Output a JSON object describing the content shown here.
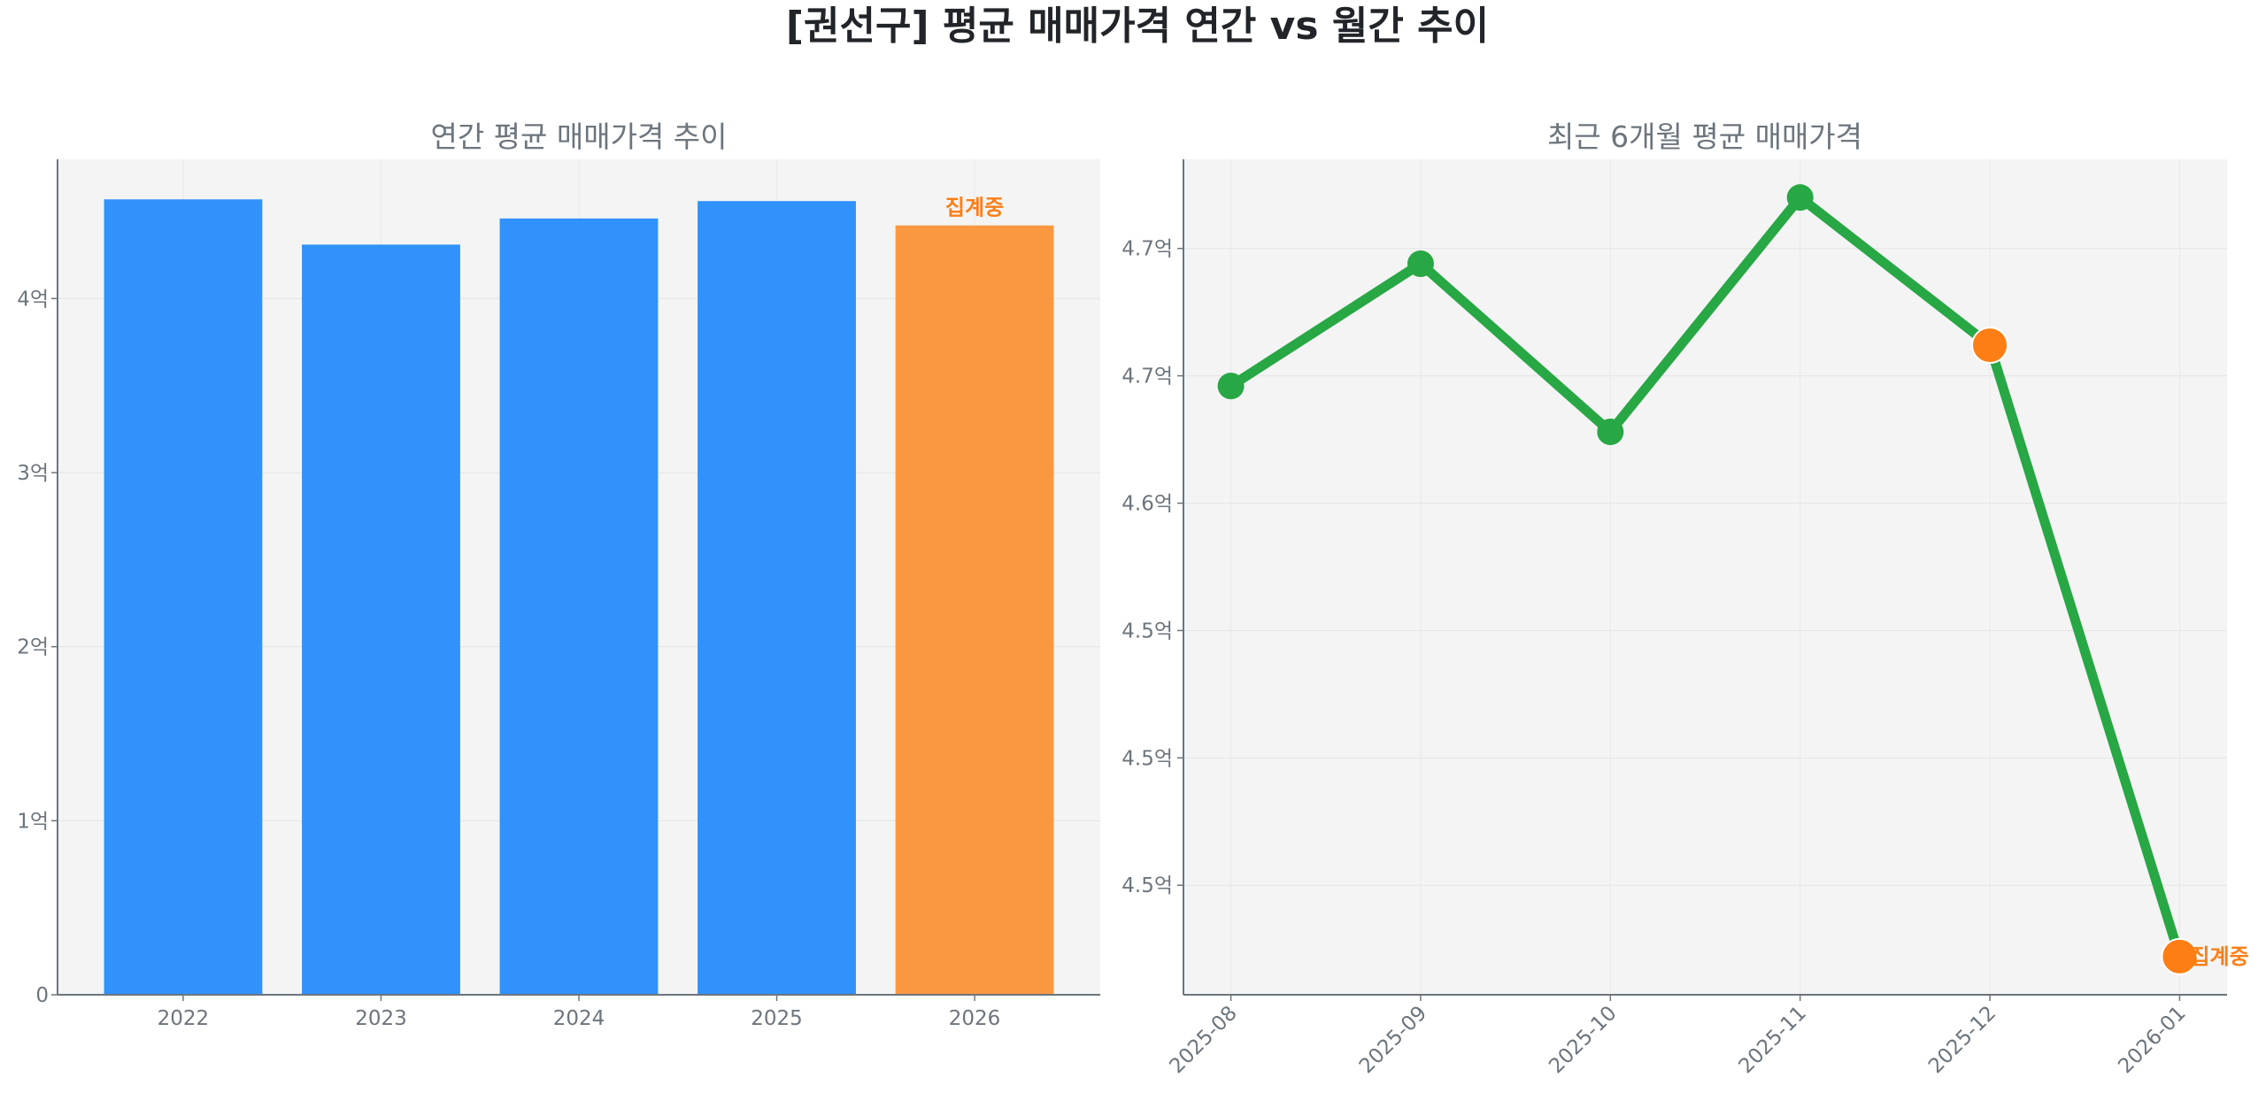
{
  "title": "[권선구] 평균 매매가격 연간 vs 월간 추이",
  "colors": {
    "bar": "#3192fb",
    "bar_in_progress": "#f99841",
    "line": "#28a745",
    "marker_highlight": "#fd7e14",
    "annotation": "#fd7e14",
    "axes_bg": "#f4f4f4"
  },
  "chart_data": [
    {
      "type": "bar",
      "title": "연간 평균 매매가격 추이",
      "categories": [
        "2022",
        "2023",
        "2024",
        "2025",
        "2026"
      ],
      "values": [
        4.57,
        4.31,
        4.46,
        4.56,
        4.42
      ],
      "unit": "억",
      "ylim": [
        0,
        4.8
      ],
      "yticks": [
        0,
        1,
        2,
        3,
        4
      ],
      "ytick_labels": [
        "0",
        "1억",
        "2억",
        "3억",
        "4억"
      ],
      "highlight_index": 4,
      "annotation": {
        "category": "2026",
        "text": "집계중"
      },
      "grid": true
    },
    {
      "type": "line",
      "title": "최근 6개월 평균 매매가격",
      "categories": [
        "2025-08",
        "2025-09",
        "2025-10",
        "2025-11",
        "2025-12",
        "2026-01"
      ],
      "values": [
        4.646,
        4.694,
        4.628,
        4.72,
        4.662,
        4.422
      ],
      "unit": "억",
      "ylim": [
        4.407,
        4.735
      ],
      "yticks": [
        4.7,
        4.65,
        4.6,
        4.55,
        4.5,
        4.45
      ],
      "ytick_labels": [
        "4.7억",
        "4.7억",
        "4.6억",
        "4.5억",
        "4.5억",
        "4.5억"
      ],
      "highlight_indices": [
        4,
        5
      ],
      "annotation": {
        "category": "2026-01",
        "text": "집계중"
      },
      "grid": true
    }
  ]
}
